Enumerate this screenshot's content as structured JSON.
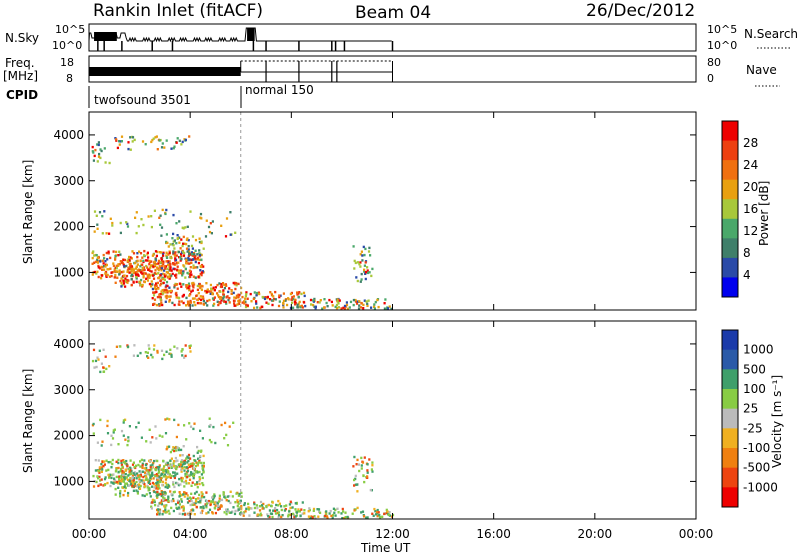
{
  "header": {
    "station": "Rankin Inlet (fitACF)",
    "beam": "Beam 04",
    "date": "26/Dec/2012"
  },
  "params": {
    "nsky_label": "N.Sky",
    "nsky_top": "10^5",
    "nsky_bottom": "10^0",
    "nsky_right_top": "10^5",
    "nsky_right_bottom": "10^0",
    "nsearch_label": "N.Search",
    "freq_label": "Freq.",
    "freq_unit": "[MHz]",
    "freq_top": "18",
    "freq_bottom": "8",
    "nave_label": "Nave",
    "nave_top": "80",
    "nave_bottom": "0",
    "cpid_label": "CPID",
    "cpid_mode1": "twofsound 3501",
    "cpid_mode2": "normal 150"
  },
  "colors": {
    "power_scale": [
      "#0000ee",
      "#2a4aa8",
      "#3f7f6a",
      "#4aa86a",
      "#a8c83a",
      "#e8a010",
      "#f07010",
      "#ee4010",
      "#ee0000"
    ],
    "velocity_scale": [
      "#ee0000",
      "#ee4410",
      "#f08010",
      "#f0b020",
      "#bbbbbb",
      "#88cc44",
      "#3f9f6a",
      "#2a5aa8",
      "#1a3aaa"
    ]
  },
  "chart_data": [
    {
      "type": "heatmap",
      "name": "power",
      "ylabel": "Slant Range [km]",
      "yticks": [
        "1000",
        "2000",
        "3000",
        "4000"
      ],
      "xticks": [
        "00:00",
        "04:00",
        "08:00",
        "12:00",
        "16:00",
        "20:00",
        "00:00"
      ],
      "xlim_hours": [
        0,
        24
      ],
      "ylim_km": [
        180,
        4500
      ],
      "data_extent_hours": [
        0,
        12
      ],
      "colorbar_label": "Power [dB]",
      "colorbar_ticks": [
        "28",
        "24",
        "20",
        "16",
        "12",
        "8",
        "4"
      ]
    },
    {
      "type": "heatmap",
      "name": "velocity",
      "ylabel": "Slant Range [km]",
      "yticks": [
        "1000",
        "2000",
        "3000",
        "4000"
      ],
      "xticks": [
        "00:00",
        "04:00",
        "08:00",
        "12:00",
        "16:00",
        "20:00",
        "00:00"
      ],
      "xlabel": "Time UT",
      "xlim_hours": [
        0,
        24
      ],
      "ylim_km": [
        180,
        4500
      ],
      "data_extent_hours": [
        0,
        12
      ],
      "colorbar_label": "Velocity [m s⁻¹]",
      "colorbar_ticks": [
        "1000",
        "500",
        "100",
        "25",
        "-25",
        "-100",
        "-500",
        "-1000"
      ]
    }
  ]
}
